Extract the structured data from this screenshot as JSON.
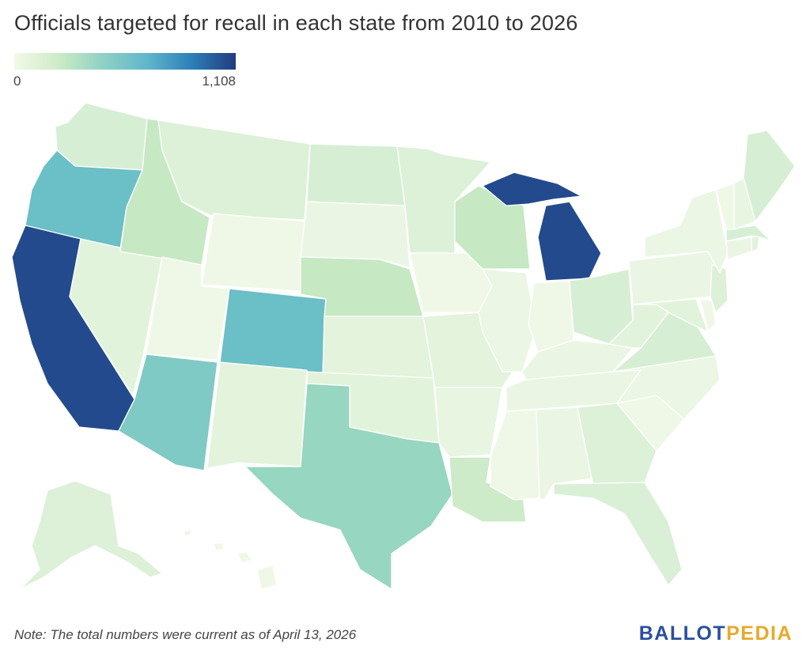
{
  "title": "Officials targeted for recall in each state from 2010 to 2026",
  "legend": {
    "min_label": "0",
    "max_label": "1,108",
    "min_value": 0,
    "max_value": 1108,
    "colors": [
      "#f3f9e8",
      "#cdebc6",
      "#8fd1c5",
      "#61b6cc",
      "#2c80b8",
      "#223b80"
    ]
  },
  "note": "Note: The total numbers were current as of April 13, 2026",
  "logo": {
    "part1": "BALLOT",
    "part2": "PEDIA",
    "color1": "#2b4e9e",
    "color2": "#e8a92b"
  },
  "states": {
    "WA": "#d6efd4",
    "OR": "#6bbfc6",
    "CA": "#234a8c",
    "NV": "#e2f3dc",
    "ID": "#c6e8c3",
    "MT": "#dcf1d8",
    "WY": "#eff8e6",
    "UT": "#eff8e6",
    "AZ": "#7fcac4",
    "NM": "#e3f3dc",
    "CO": "#6bbfc6",
    "ND": "#d6efd4",
    "SD": "#eaf6e3",
    "NE": "#c6e8c3",
    "KS": "#e3f3dc",
    "OK": "#e2f3dc",
    "TX": "#97d6c0",
    "MN": "#dcf1d8",
    "IA": "#eff8e6",
    "MO": "#e3f3dc",
    "AR": "#e8f5e1",
    "LA": "#cdeac9",
    "WI": "#c6e8c3",
    "IL": "#ebf6e4",
    "MI": "#234a8c",
    "IN": "#eff8e6",
    "OH": "#d6efd4",
    "KY": "#eaf6e3",
    "TN": "#eaf6e3",
    "MS": "#eff8e6",
    "AL": "#eaf6e3",
    "GA": "#dcf1d8",
    "FL": "#d9f0d6",
    "SC": "#eff8e6",
    "NC": "#ebf6e4",
    "VA": "#d6efd4",
    "WV": "#e2f3dc",
    "PA": "#eaf6e3",
    "NY": "#ebf6e4",
    "VT": "#eff8e6",
    "NH": "#e8f5e1",
    "ME": "#d6efd4",
    "MA": "#d6efd4",
    "NJ": "#dcf1d8",
    "MD": "#e2f3dc",
    "DE": "#eff8e6",
    "CT": "#eaf6e3",
    "RI": "#e2f3dc",
    "AK": "#dcf1d8",
    "HI": "#eff8e6"
  }
}
